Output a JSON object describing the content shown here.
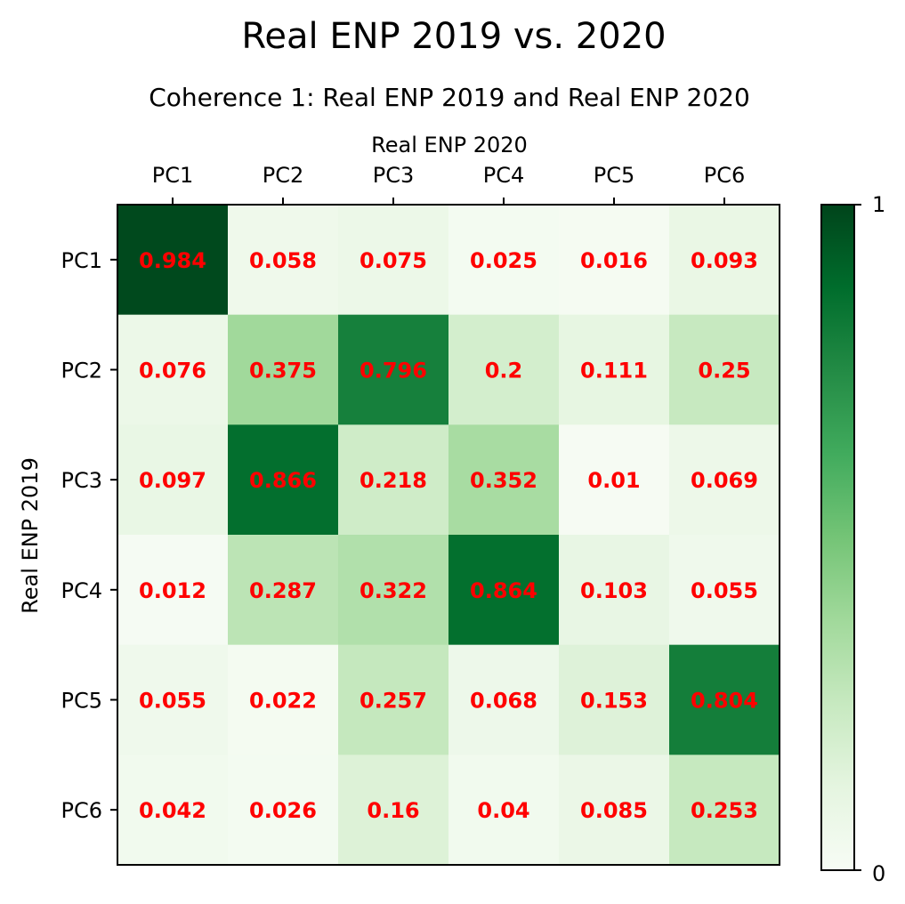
{
  "chart_data": {
    "type": "heatmap",
    "title": "Real ENP 2019 vs. 2020",
    "subtitle": "Coherence 1: Real ENP 2019 and Real ENP 2020",
    "xlabel": "Real ENP 2020",
    "ylabel": "Real ENP 2019",
    "x_categories": [
      "PC1",
      "PC2",
      "PC3",
      "PC4",
      "PC5",
      "PC6"
    ],
    "y_categories": [
      "PC1",
      "PC2",
      "PC3",
      "PC4",
      "PC5",
      "PC6"
    ],
    "values": [
      [
        0.984,
        0.058,
        0.075,
        0.025,
        0.016,
        0.093
      ],
      [
        0.076,
        0.375,
        0.796,
        0.2,
        0.111,
        0.25
      ],
      [
        0.097,
        0.866,
        0.218,
        0.352,
        0.01,
        0.069
      ],
      [
        0.012,
        0.287,
        0.322,
        0.864,
        0.103,
        0.055
      ],
      [
        0.055,
        0.022,
        0.257,
        0.068,
        0.153,
        0.804
      ],
      [
        0.042,
        0.026,
        0.16,
        0.04,
        0.085,
        0.253
      ]
    ],
    "value_labels": [
      [
        "0.984",
        "0.058",
        "0.075",
        "0.025",
        "0.016",
        "0.093"
      ],
      [
        "0.076",
        "0.375",
        "0.796",
        "0.2",
        "0.111",
        "0.25"
      ],
      [
        "0.097",
        "0.866",
        "0.218",
        "0.352",
        "0.01",
        "0.069"
      ],
      [
        "0.012",
        "0.287",
        "0.322",
        "0.864",
        "0.103",
        "0.055"
      ],
      [
        "0.055",
        "0.022",
        "0.257",
        "0.068",
        "0.153",
        "0.804"
      ],
      [
        "0.042",
        "0.026",
        "0.16",
        "0.04",
        "0.085",
        "0.253"
      ]
    ],
    "colormap": "Greens",
    "vmin": 0,
    "vmax": 1,
    "colorbar_ticks": [
      "0",
      "1"
    ],
    "label_color": "#ff0000",
    "x_axis_position": "top",
    "grid": false
  }
}
